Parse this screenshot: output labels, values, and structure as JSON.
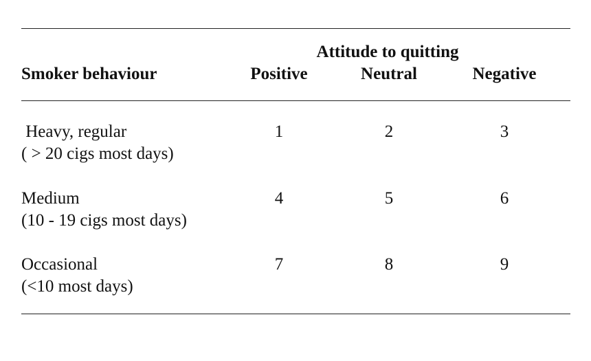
{
  "table": {
    "group_header": "Attitude to quitting",
    "row_header": "Smoker behaviour",
    "columns": [
      "Positive",
      "Neutral",
      "Negative"
    ],
    "rows": [
      {
        "label_line1": " Heavy, regular",
        "label_line2": "( > 20 cigs most days)",
        "values": [
          "1",
          "2",
          "3"
        ]
      },
      {
        "label_line1": "Medium",
        "label_line2": "(10 - 19 cigs most days)",
        "values": [
          "4",
          "5",
          "6"
        ]
      },
      {
        "label_line1": "Occasional",
        "label_line2": "(<10 most days)",
        "values": [
          "7",
          "8",
          "9"
        ]
      }
    ]
  }
}
